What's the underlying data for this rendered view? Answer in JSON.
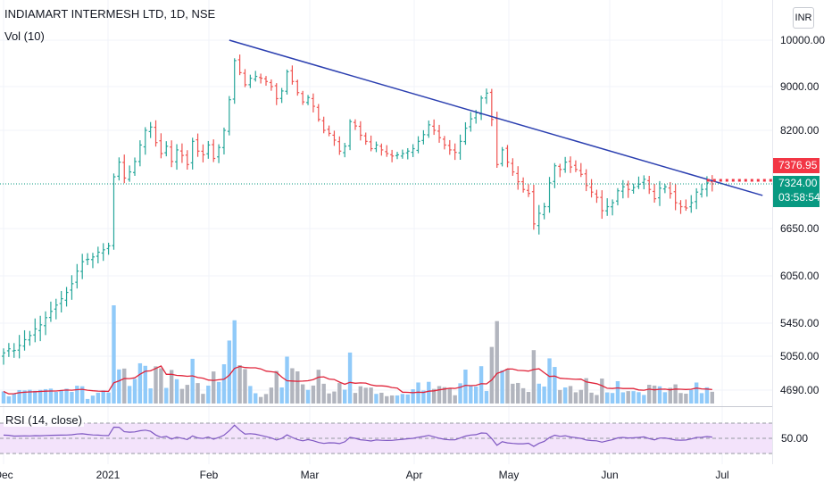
{
  "header": {
    "title": "INDIAMART INTERMESH LTD, 1D, NSE",
    "volume_label": "Vol (10)",
    "rsi_label": "RSI (14, close)",
    "currency_button": "INR"
  },
  "price_tags": {
    "red_value": "7376.95",
    "green_value": "7324.00",
    "countdown": "03:58:54"
  },
  "colors": {
    "up": "#26a69a",
    "down": "#ef5350",
    "vol_up": "#90caf9",
    "vol_down": "#b2b5be",
    "vol_ma": "#e0243a",
    "trendline": "#2b3fb0",
    "rsi_line": "#7e57c2",
    "rsi_band": "#f3e3fb",
    "last_price_line": "#089981",
    "red_line": "#f23645"
  },
  "chart_data": {
    "type": "candlestick",
    "symbol": "INDIAMART INTERMESH LTD",
    "interval": "1D",
    "exchange": "NSE",
    "price_axis_labels": [
      "10000.00",
      "9000.00",
      "8200.00",
      "6650.00",
      "6050.00",
      "5450.00",
      "5050.00",
      "4690.00"
    ],
    "price_axis_values": [
      10000,
      9000,
      8200,
      6650,
      6050,
      5450,
      5050,
      4690
    ],
    "time_axis_labels": [
      "Dec",
      "2021",
      "Feb",
      "Mar",
      "Apr",
      "May",
      "Jun",
      "Jul"
    ],
    "rsi_axis_labels": [
      "50.00"
    ],
    "rsi_levels": [
      30,
      50,
      70
    ],
    "last_close": 7324.0,
    "red_level": 7376.95,
    "trendline": {
      "start": [
        43,
        10000
      ],
      "end": [
        148,
        7150
      ]
    },
    "closes": [
      5090,
      5140,
      5120,
      5180,
      5250,
      5300,
      5380,
      5430,
      5520,
      5600,
      5680,
      5760,
      5840,
      5950,
      6110,
      6230,
      6260,
      6290,
      6350,
      6380,
      6430,
      7440,
      7680,
      7420,
      7520,
      7690,
      7960,
      8200,
      8260,
      8000,
      7820,
      7940,
      7690,
      7880,
      7790,
      7640,
      8020,
      7860,
      7800,
      7960,
      7740,
      7920,
      8200,
      8760,
      9560,
      9300,
      9040,
      9180,
      9220,
      9180,
      9110,
      9000,
      8780,
      8920,
      9320,
      9110,
      8890,
      8720,
      8800,
      8640,
      8400,
      8200,
      8150,
      8040,
      7860,
      7940,
      8360,
      8280,
      8120,
      8020,
      7900,
      7960,
      7880,
      7820,
      7780,
      7800,
      7820,
      7860,
      7900,
      8020,
      8130,
      8300,
      8200,
      8080,
      7960,
      7880,
      7840,
      8020,
      8240,
      8410,
      8520,
      8790,
      8880,
      8400,
      7640,
      7880,
      7680,
      7520,
      7360,
      7240,
      7180,
      6720,
      6880,
      6980,
      7340,
      7620,
      7560,
      7680,
      7600,
      7560,
      7480,
      7300,
      7200,
      7120,
      6920,
      6980,
      7040,
      7220,
      7280,
      7240,
      7270,
      7320,
      7400,
      7240,
      7100,
      7260,
      7280,
      7180,
      7040,
      6980,
      6960,
      7040,
      7200,
      7240,
      7340,
      7324
    ]
  }
}
